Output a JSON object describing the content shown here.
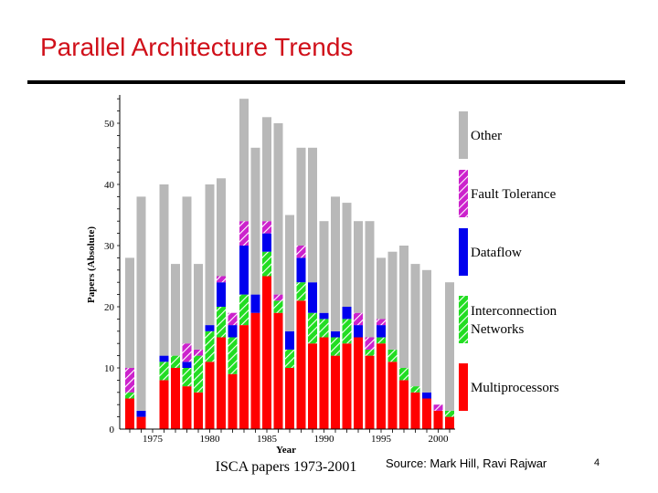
{
  "slide": {
    "title": "Parallel Architecture Trends",
    "source": "Source: Mark Hill, Ravi Rajwar",
    "page_number": "4"
  },
  "chart_data": {
    "type": "bar",
    "stacked": true,
    "title": "ISCA papers 1973-2001",
    "xlabel": "Year",
    "ylabel": "Papers (Absolute)",
    "ylim": [
      0,
      54
    ],
    "yticks": [
      0,
      10,
      20,
      30,
      40,
      50
    ],
    "xticks": [
      1975,
      1980,
      1985,
      1990,
      1995,
      2000
    ],
    "categories": [
      1973,
      1974,
      1975,
      1976,
      1977,
      1978,
      1979,
      1980,
      1981,
      1982,
      1983,
      1984,
      1985,
      1986,
      1987,
      1988,
      1989,
      1990,
      1991,
      1992,
      1993,
      1994,
      1995,
      1996,
      1997,
      1998,
      1999,
      2000,
      2001
    ],
    "series": [
      {
        "name": "Multiprocessors",
        "color": "#ff0000",
        "pattern": "solid",
        "values": [
          5,
          2,
          0,
          8,
          10,
          7,
          6,
          11,
          15,
          9,
          17,
          19,
          25,
          19,
          10,
          21,
          14,
          15,
          12,
          14,
          15,
          12,
          14,
          11,
          8,
          6,
          5,
          3,
          2
        ]
      },
      {
        "name": "Interconnection Networks",
        "color": "#22dd22",
        "pattern": "hatch",
        "values": [
          1,
          0,
          0,
          3,
          2,
          3,
          6,
          5,
          5,
          6,
          5,
          0,
          4,
          2,
          3,
          3,
          5,
          3,
          3,
          4,
          0,
          1,
          1,
          2,
          2,
          1,
          0,
          0,
          1
        ]
      },
      {
        "name": "Dataflow",
        "color": "#0000ee",
        "pattern": "solid",
        "values": [
          0,
          1,
          0,
          1,
          0,
          1,
          0,
          1,
          4,
          2,
          8,
          3,
          3,
          0,
          3,
          4,
          5,
          1,
          1,
          2,
          2,
          0,
          2,
          0,
          0,
          0,
          1,
          0,
          0
        ]
      },
      {
        "name": "Fault Tolerance",
        "color": "#cc22cc",
        "pattern": "hatch",
        "values": [
          4,
          0,
          0,
          0,
          0,
          3,
          1,
          0,
          1,
          2,
          4,
          0,
          2,
          1,
          0,
          2,
          0,
          0,
          0,
          0,
          2,
          2,
          1,
          0,
          0,
          0,
          0,
          1,
          0
        ]
      },
      {
        "name": "Other",
        "color": "#b8b8b8",
        "pattern": "solid",
        "values": [
          18,
          35,
          0,
          28,
          15,
          24,
          14,
          23,
          16,
          0,
          20,
          24,
          17,
          28,
          19,
          16,
          22,
          15,
          22,
          17,
          15,
          19,
          10,
          16,
          20,
          20,
          20,
          0,
          21
        ]
      }
    ],
    "legend": [
      "Other",
      "Fault Tolerance",
      "Dataflow",
      "Interconnection Networks",
      "Multiprocessors"
    ],
    "legend_labels": {
      "other": "Other",
      "fault_tolerance": "Fault Tolerance",
      "dataflow": "Dataflow",
      "interconnection_1": "Interconnection",
      "interconnection_2": "Networks",
      "multiprocessors": "Multiprocessors"
    }
  }
}
